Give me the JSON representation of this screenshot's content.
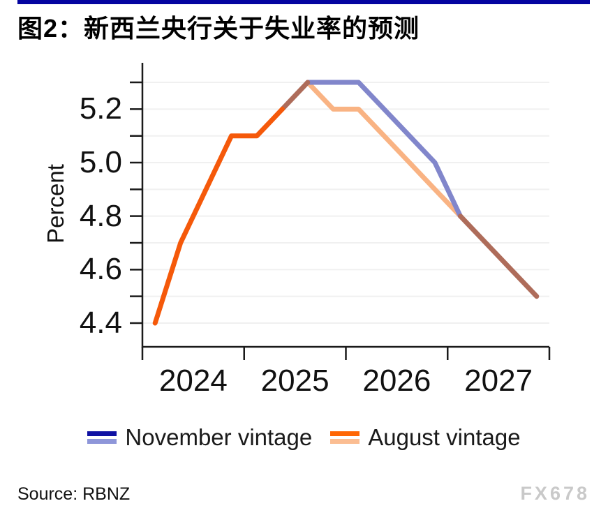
{
  "header": {
    "title": "图2：新西兰央行关于失业率的预测"
  },
  "colors": {
    "top_bar": "#0404a0",
    "axis": "#1a1a1a",
    "grid": "#f0f0f0",
    "watermark": "#c9c9c9"
  },
  "chart_data": {
    "type": "line",
    "title": "图2：新西兰央行关于失业率的预测",
    "xlabel": "",
    "ylabel": "Percent",
    "ylim": [
      4.3,
      5.35
    ],
    "grid": "horizontal",
    "gridline_values": [
      4.4,
      4.5,
      4.6,
      4.7,
      4.8,
      4.9,
      5.0,
      5.1,
      5.2,
      5.3
    ],
    "ytick_values": [
      4.4,
      4.6,
      4.8,
      5.0,
      5.2
    ],
    "ytick_labels": [
      "4.4",
      "4.6",
      "4.8",
      "5.0",
      "5.2"
    ],
    "x_tick_years": [
      "2024",
      "2025",
      "2026",
      "2027"
    ],
    "quarters": [
      "2024Q1",
      "2024Q2",
      "2024Q3",
      "2024Q4",
      "2025Q1",
      "2025Q2",
      "2025Q3",
      "2025Q4",
      "2026Q1",
      "2026Q2",
      "2026Q3",
      "2026Q4",
      "2027Q1",
      "2027Q2",
      "2027Q3",
      "2027Q4"
    ],
    "series": [
      {
        "name": "November vintage",
        "color": "#8186cb",
        "values": [
          null,
          null,
          null,
          null,
          null,
          5.2,
          5.3,
          5.3,
          5.3,
          5.2,
          5.1,
          5.0,
          4.8,
          4.7,
          4.6,
          4.5
        ]
      },
      {
        "name": "August vintage",
        "color": "#f5590a",
        "values": [
          4.4,
          4.7,
          4.9,
          5.1,
          5.1,
          5.2,
          5.3,
          5.2,
          5.2,
          5.1,
          5.0,
          4.9,
          4.8,
          4.7,
          4.6,
          4.5
        ]
      }
    ],
    "rendered_segments": [
      {
        "name": "august-forecast",
        "color": "#f9b383",
        "points": [
          [
            6,
            5.3
          ],
          [
            7,
            5.2
          ],
          [
            8,
            5.2
          ],
          [
            9,
            5.1
          ],
          [
            10,
            5.0
          ],
          [
            11,
            4.9
          ],
          [
            12,
            4.8
          ]
        ]
      },
      {
        "name": "november-forecast",
        "color": "#8186cb",
        "points": [
          [
            6,
            5.3
          ],
          [
            8,
            5.3
          ],
          [
            9,
            5.2
          ],
          [
            10,
            5.1
          ],
          [
            11,
            5.0
          ],
          [
            12,
            4.8
          ]
        ]
      },
      {
        "name": "shared-rise",
        "color": "#ae6c5a",
        "points": [
          [
            5,
            5.2
          ],
          [
            6,
            5.3
          ]
        ]
      },
      {
        "name": "shared-fall",
        "color": "#ae6c5a",
        "points": [
          [
            12,
            4.8
          ],
          [
            13,
            4.7
          ],
          [
            14,
            4.6
          ],
          [
            15,
            4.5
          ]
        ]
      },
      {
        "name": "august-actual",
        "color": "#f5590a",
        "points": [
          [
            0,
            4.4
          ],
          [
            1,
            4.7
          ],
          [
            2,
            4.9
          ],
          [
            3,
            5.1
          ],
          [
            4,
            5.1
          ],
          [
            5,
            5.2
          ]
        ]
      }
    ],
    "legend": {
      "position": "bottom",
      "items": [
        {
          "label": "November vintage",
          "colors": [
            "#1012a3",
            "#8e96d9"
          ]
        },
        {
          "label": "August vintage",
          "colors": [
            "#ff6604",
            "#fbbd92"
          ]
        }
      ]
    }
  },
  "footer": {
    "source": "Source: RBNZ",
    "watermark": "FX678"
  }
}
